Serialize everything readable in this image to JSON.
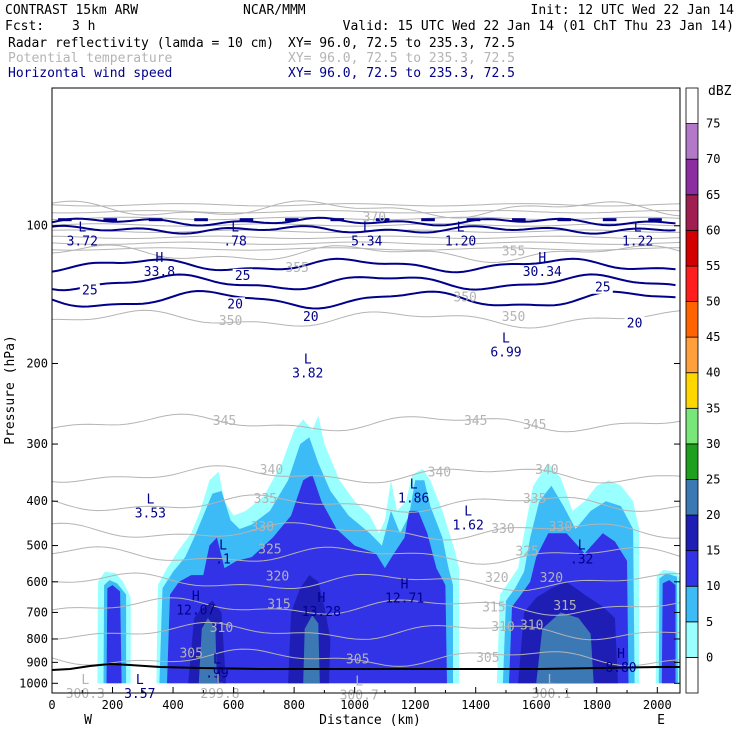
{
  "header": {
    "line1_left": "CONTRAST 15km ARW",
    "line1_mid": "NCAR/MMM",
    "line1_right": "Init: 12 UTC Wed 22 Jan 14",
    "line2_left": "Fcst:",
    "line2_fcst": "3 h",
    "line2_right": "Valid: 15 UTC Wed 22 Jan 14 (01 ChT Thu 23 Jan 14)",
    "fields": [
      {
        "name": "Radar reflectivity (lamda = 10 cm)",
        "xy": "XY=  96.0, 72.5 to 235.3, 72.5",
        "color": "#000000"
      },
      {
        "name": "Potential temperature",
        "xy": "XY=  96.0, 72.5 to 235.3, 72.5",
        "color": "#b4b4b4"
      },
      {
        "name": "Horizontal wind speed",
        "xy": "XY=  96.0, 72.5 to 235.3, 72.5",
        "color": "#00008b"
      }
    ]
  },
  "chart_data": {
    "type": "cross-section (filled contour + contour lines)",
    "xlabel": "Distance (km)",
    "ylabel": "Pressure (hPa)",
    "xlim": [
      0,
      2075
    ],
    "ylim_hPa": [
      1050,
      50
    ],
    "x_ticks": [
      0,
      200,
      400,
      600,
      800,
      1000,
      1200,
      1400,
      1600,
      1800,
      2000
    ],
    "y_ticks": [
      100,
      200,
      300,
      400,
      500,
      600,
      700,
      800,
      900,
      1000
    ],
    "endpoint_labels": {
      "left": "W",
      "right": "E"
    },
    "colorbar": {
      "unit": "dBZ",
      "levels": [
        0,
        5,
        10,
        15,
        20,
        25,
        30,
        35,
        40,
        45,
        50,
        55,
        60,
        65,
        70,
        75
      ],
      "colors": [
        "#ffffff",
        "#99ffff",
        "#3dbbf6",
        "#3232e6",
        "#1e1eb4",
        "#3c78b4",
        "#1ea01e",
        "#78e678",
        "#ffd700",
        "#ffa03c",
        "#ff6400",
        "#ff1e1e",
        "#d20000",
        "#a01e50",
        "#8a2ea0",
        "#b478c8",
        "#ffffff"
      ]
    },
    "reflectivity_regions": [
      {
        "level": 5,
        "label": "west cell",
        "x_km": [
          150,
          260
        ],
        "p_top": 570
      },
      {
        "level": 5,
        "label": "central convective region",
        "x_km": [
          345,
          1345
        ],
        "p_top": 260
      },
      {
        "level": 5,
        "label": "eastern region",
        "x_km": [
          1470,
          1940
        ],
        "p_top": 330
      },
      {
        "level": 5,
        "label": "far east cell",
        "x_km": [
          1995,
          2075
        ],
        "p_top": 565
      }
    ],
    "theta_isentropes_K": [
      {
        "value": 305,
        "p_hPa": 880
      },
      {
        "value": 310,
        "p_hPa": 770
      },
      {
        "value": 315,
        "p_hPa": 680
      },
      {
        "value": 320,
        "p_hPa": 600
      },
      {
        "value": 325,
        "p_hPa": 525
      },
      {
        "value": 330,
        "p_hPa": 465
      },
      {
        "value": 335,
        "p_hPa": 405
      },
      {
        "value": 340,
        "p_hPa": 350
      },
      {
        "value": 345,
        "p_hPa": 270
      },
      {
        "value": 350,
        "p_hPa": 160
      },
      {
        "value": 355,
        "p_hPa": 115
      },
      {
        "value": 370,
        "p_hPa": 92
      }
    ],
    "theta_labels": [
      {
        "text": "305",
        "x_km": 460,
        "p": 870
      },
      {
        "text": "305",
        "x_km": 1010,
        "p": 895
      },
      {
        "text": "305",
        "x_km": 1440,
        "p": 890
      },
      {
        "text": "310",
        "x_km": 560,
        "p": 765
      },
      {
        "text": "310",
        "x_km": 1490,
        "p": 760
      },
      {
        "text": "310",
        "x_km": 1585,
        "p": 755
      },
      {
        "text": "315",
        "x_km": 750,
        "p": 680
      },
      {
        "text": "315",
        "x_km": 1460,
        "p": 690
      },
      {
        "text": "315",
        "x_km": 1695,
        "p": 685
      },
      {
        "text": "320",
        "x_km": 745,
        "p": 590
      },
      {
        "text": "320",
        "x_km": 1470,
        "p": 595
      },
      {
        "text": "320",
        "x_km": 1650,
        "p": 595
      },
      {
        "text": "325",
        "x_km": 720,
        "p": 515
      },
      {
        "text": "325",
        "x_km": 1570,
        "p": 520
      },
      {
        "text": "330",
        "x_km": 695,
        "p": 460
      },
      {
        "text": "330",
        "x_km": 1490,
        "p": 465
      },
      {
        "text": "330",
        "x_km": 1680,
        "p": 460
      },
      {
        "text": "335",
        "x_km": 705,
        "p": 400
      },
      {
        "text": "335",
        "x_km": 1595,
        "p": 400
      },
      {
        "text": "340",
        "x_km": 725,
        "p": 345
      },
      {
        "text": "340",
        "x_km": 1280,
        "p": 350
      },
      {
        "text": "340",
        "x_km": 1635,
        "p": 345
      },
      {
        "text": "345",
        "x_km": 570,
        "p": 270
      },
      {
        "text": "345",
        "x_km": 1400,
        "p": 270
      },
      {
        "text": "345",
        "x_km": 1595,
        "p": 275
      },
      {
        "text": "350",
        "x_km": 1365,
        "p": 145
      },
      {
        "text": "350",
        "x_km": 1525,
        "p": 160
      },
      {
        "text": "350",
        "x_km": 590,
        "p": 163
      },
      {
        "text": "355",
        "x_km": 810,
        "p": 125
      },
      {
        "text": "370",
        "x_km": 1065,
        "p": 97
      },
      {
        "text": "355",
        "x_km": 1525,
        "p": 115
      }
    ],
    "wind_isotachs_ms": [
      20,
      25
    ],
    "wind_labels": [
      {
        "text": "25",
        "x_km": 125,
        "p": 140
      },
      {
        "text": "25",
        "x_km": 630,
        "p": 130
      },
      {
        "text": "25",
        "x_km": 1820,
        "p": 138
      },
      {
        "text": "20",
        "x_km": 605,
        "p": 150
      },
      {
        "text": "20",
        "x_km": 855,
        "p": 160
      },
      {
        "text": "20",
        "x_km": 1925,
        "p": 165
      }
    ],
    "hl_markers": [
      {
        "letter": "L",
        "value": "3.72",
        "x_km": 100,
        "p": 103,
        "color": "#00008b"
      },
      {
        "letter": "H",
        "value": "33.8",
        "x_km": 355,
        "p": 120,
        "color": "#00008b"
      },
      {
        "letter": "L",
        "value": ".78",
        "x_km": 605,
        "p": 103,
        "color": "#00008b"
      },
      {
        "letter": "L",
        "value": "5.34",
        "x_km": 1040,
        "p": 103,
        "color": "#00008b"
      },
      {
        "letter": "L",
        "value": "1.20",
        "x_km": 1350,
        "p": 103,
        "color": "#00008b"
      },
      {
        "letter": "H",
        "value": "30.34",
        "x_km": 1620,
        "p": 120,
        "color": "#00008b"
      },
      {
        "letter": "L",
        "value": "1.22",
        "x_km": 1935,
        "p": 103,
        "color": "#00008b"
      },
      {
        "letter": "L",
        "value": "3.82",
        "x_km": 845,
        "p": 200,
        "color": "#00008b"
      },
      {
        "letter": "L",
        "value": "6.99",
        "x_km": 1500,
        "p": 180,
        "color": "#00008b"
      },
      {
        "letter": "L",
        "value": "3.53",
        "x_km": 325,
        "p": 405,
        "color": "#00008b"
      },
      {
        "letter": "L",
        "value": "1.86",
        "x_km": 1195,
        "p": 375,
        "color": "#00008b"
      },
      {
        "letter": "L",
        "value": "1.62",
        "x_km": 1375,
        "p": 430,
        "color": "#00008b"
      },
      {
        "letter": "L",
        "value": ".1",
        "x_km": 565,
        "p": 510,
        "color": "#00008b"
      },
      {
        "letter": "L",
        "value": ".32",
        "x_km": 1750,
        "p": 510,
        "color": "#00008b"
      },
      {
        "letter": "H",
        "value": "12.71",
        "x_km": 1165,
        "p": 620,
        "color": "#00008b"
      },
      {
        "letter": "H",
        "value": "12.07",
        "x_km": 475,
        "p": 660,
        "color": "#00008b"
      },
      {
        "letter": "H",
        "value": "13.28",
        "x_km": 890,
        "p": 665,
        "color": "#00008b"
      },
      {
        "letter": "L",
        "value": ".99",
        "x_km": 545,
        "p": 905,
        "color": "#00008b"
      },
      {
        "letter": "H",
        "value": "8.80",
        "x_km": 1880,
        "p": 880,
        "color": "#00008b"
      },
      {
        "letter": "L",
        "value": "3.57",
        "x_km": 290,
        "p": 1003,
        "color": "#00008b"
      },
      {
        "letter": "L",
        "value": "300.3",
        "x_km": 110,
        "p": 1003,
        "color": "#b4b4b4"
      },
      {
        "letter": "L",
        "value": "299.8",
        "x_km": 555,
        "p": 1003,
        "color": "#b4b4b4"
      },
      {
        "letter": "L",
        "value": "300.7",
        "x_km": 1015,
        "p": 1012,
        "color": "#b4b4b4"
      },
      {
        "letter": "L",
        "value": "300.1",
        "x_km": 1650,
        "p": 1003,
        "color": "#b4b4b4"
      }
    ]
  }
}
